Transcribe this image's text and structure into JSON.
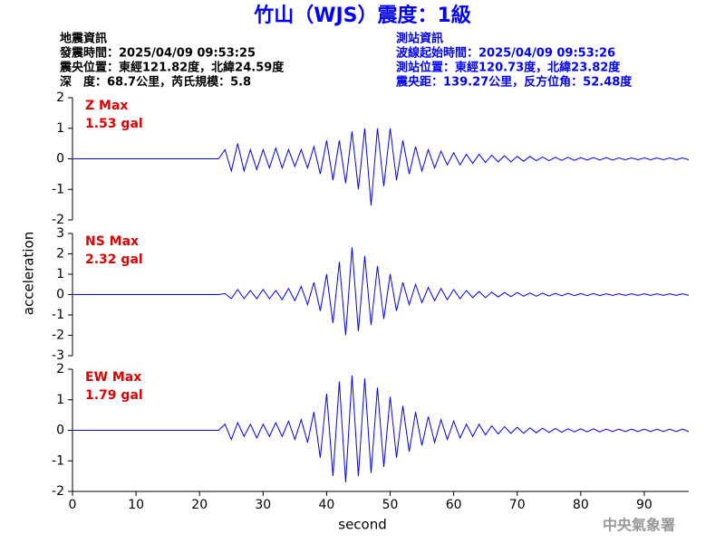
{
  "header": {
    "title": "竹山（WJS）震度：1級",
    "event": [
      "地震資訊",
      "發震時間：2025/04/09 09:53:25",
      "震央位置：東經121.82度，北緯24.59度",
      "深　度：68.7公里，芮氏規模：5.8"
    ],
    "station": [
      "測站資訊",
      "波線起始時間：2025/04/09 09:53:26",
      "測站位置：東經120.73度，北緯23.82度",
      "震央距：139.27公里，反方位角：52.48度"
    ]
  },
  "y_label": "acceleration",
  "footer": "中央氣象署",
  "chart_data": [
    {
      "type": "line",
      "annotations": [
        "Z Max",
        "1.53 gal"
      ],
      "xlim": [
        0,
        97
      ],
      "ylim": [
        -2,
        2
      ],
      "yticks": [
        -2,
        -1,
        0,
        1,
        2
      ],
      "x": [
        0,
        23,
        24,
        25,
        26,
        27,
        28,
        29,
        30,
        31,
        32,
        33,
        34,
        35,
        36,
        37,
        38,
        39,
        40,
        41,
        42,
        43,
        44,
        45,
        46,
        47,
        48,
        49,
        50,
        51,
        52,
        53,
        54,
        55,
        56,
        57,
        58,
        59,
        60,
        61,
        62,
        63,
        64,
        65,
        66,
        67,
        68,
        69,
        70,
        71,
        72,
        73,
        74,
        75,
        76,
        77,
        78,
        79,
        80,
        81,
        82,
        83,
        84,
        85,
        86,
        87,
        88,
        89,
        90,
        91,
        92,
        93,
        94,
        95,
        96,
        97
      ],
      "series": [
        {
          "name": "Z",
          "color": "#0000ff",
          "values": [
            0,
            0,
            0.3,
            -0.4,
            0.5,
            -0.4,
            0.3,
            -0.35,
            0.3,
            -0.3,
            0.35,
            -0.3,
            0.3,
            -0.25,
            0.3,
            -0.3,
            0.4,
            -0.5,
            0.6,
            -0.7,
            0.6,
            -0.8,
            0.9,
            -1.0,
            1.0,
            -1.53,
            1.0,
            -0.9,
            1.0,
            -0.7,
            0.6,
            -0.5,
            0.4,
            -0.4,
            0.3,
            -0.3,
            0.25,
            -0.2,
            0.2,
            -0.2,
            0.15,
            -0.15,
            0.15,
            -0.12,
            0.12,
            -0.1,
            0.1,
            -0.1,
            0.08,
            -0.08,
            0.08,
            -0.06,
            0.06,
            -0.06,
            0.05,
            -0.05,
            0.05,
            -0.05,
            0.04,
            -0.04,
            0.04,
            -0.04,
            0.04,
            -0.04,
            0.03,
            -0.03,
            0.03,
            -0.03,
            0.03,
            -0.03,
            0.03,
            -0.03,
            0.03,
            -0.03,
            0.03,
            -0.03
          ]
        }
      ]
    },
    {
      "type": "line",
      "annotations": [
        "NS Max",
        "2.32 gal"
      ],
      "xlim": [
        0,
        97
      ],
      "ylim": [
        -3,
        3
      ],
      "yticks": [
        -3,
        -2,
        -1,
        0,
        1,
        2,
        3
      ],
      "x": [
        0,
        23,
        24,
        25,
        26,
        27,
        28,
        29,
        30,
        31,
        32,
        33,
        34,
        35,
        36,
        37,
        38,
        39,
        40,
        41,
        42,
        43,
        44,
        45,
        46,
        47,
        48,
        49,
        50,
        51,
        52,
        53,
        54,
        55,
        56,
        57,
        58,
        59,
        60,
        61,
        62,
        63,
        64,
        65,
        66,
        67,
        68,
        69,
        70,
        71,
        72,
        73,
        74,
        75,
        76,
        77,
        78,
        79,
        80,
        81,
        82,
        83,
        84,
        85,
        86,
        87,
        88,
        89,
        90,
        91,
        92,
        93,
        94,
        95,
        96,
        97
      ],
      "series": [
        {
          "name": "NS",
          "color": "#0000ff",
          "values": [
            0,
            0,
            0.05,
            -0.2,
            0.25,
            -0.2,
            0.2,
            -0.2,
            0.25,
            -0.2,
            0.2,
            -0.25,
            0.3,
            -0.3,
            0.4,
            -0.5,
            0.6,
            -0.8,
            1.0,
            -1.4,
            1.6,
            -2.0,
            2.32,
            -1.8,
            1.9,
            -1.5,
            1.4,
            -1.2,
            1.0,
            -0.8,
            0.6,
            -0.5,
            0.5,
            -0.4,
            0.35,
            -0.3,
            0.3,
            -0.25,
            0.25,
            -0.2,
            0.2,
            -0.15,
            0.15,
            -0.15,
            0.12,
            -0.12,
            0.1,
            -0.1,
            0.1,
            -0.08,
            0.08,
            -0.08,
            0.07,
            -0.07,
            0.06,
            -0.06,
            0.06,
            -0.05,
            0.05,
            -0.05,
            0.05,
            -0.05,
            0.04,
            -0.04,
            0.04,
            -0.04,
            0.04,
            -0.04,
            0.04,
            -0.04,
            0.04,
            -0.04,
            0.04,
            -0.04,
            0.04,
            -0.04
          ]
        }
      ]
    },
    {
      "type": "line",
      "annotations": [
        "EW Max",
        "1.79 gal"
      ],
      "xlim": [
        0,
        97
      ],
      "ylim": [
        -2,
        2
      ],
      "yticks": [
        -2,
        -1,
        0,
        1,
        2
      ],
      "xticks": [
        0,
        10,
        20,
        30,
        40,
        50,
        60,
        70,
        80,
        90
      ],
      "xlabel": "second",
      "x": [
        0,
        23,
        24,
        25,
        26,
        27,
        28,
        29,
        30,
        31,
        32,
        33,
        34,
        35,
        36,
        37,
        38,
        39,
        40,
        41,
        42,
        43,
        44,
        45,
        46,
        47,
        48,
        49,
        50,
        51,
        52,
        53,
        54,
        55,
        56,
        57,
        58,
        59,
        60,
        61,
        62,
        63,
        64,
        65,
        66,
        67,
        68,
        69,
        70,
        71,
        72,
        73,
        74,
        75,
        76,
        77,
        78,
        79,
        80,
        81,
        82,
        83,
        84,
        85,
        86,
        87,
        88,
        89,
        90,
        91,
        92,
        93,
        94,
        95,
        96,
        97
      ],
      "series": [
        {
          "name": "EW",
          "color": "#0000ff",
          "values": [
            0,
            0,
            0.2,
            -0.3,
            0.25,
            -0.2,
            0.2,
            -0.25,
            0.2,
            -0.2,
            0.25,
            -0.2,
            0.3,
            -0.3,
            0.35,
            -0.4,
            0.6,
            -0.9,
            1.2,
            -1.5,
            1.6,
            -1.7,
            1.79,
            -1.5,
            1.7,
            -1.4,
            1.4,
            -1.2,
            1.1,
            -0.9,
            0.8,
            -0.7,
            0.6,
            -0.5,
            0.45,
            -0.4,
            0.35,
            -0.3,
            0.3,
            -0.25,
            0.2,
            -0.2,
            0.2,
            -0.15,
            0.15,
            -0.12,
            0.12,
            -0.1,
            0.1,
            -0.1,
            0.08,
            -0.08,
            0.07,
            -0.07,
            0.06,
            -0.06,
            0.05,
            -0.05,
            0.05,
            -0.05,
            0.05,
            -0.05,
            0.04,
            -0.04,
            0.04,
            -0.04,
            0.04,
            -0.04,
            0.04,
            -0.04,
            0.04,
            -0.04,
            0.04,
            -0.04,
            0.04,
            -0.04
          ]
        }
      ]
    }
  ]
}
